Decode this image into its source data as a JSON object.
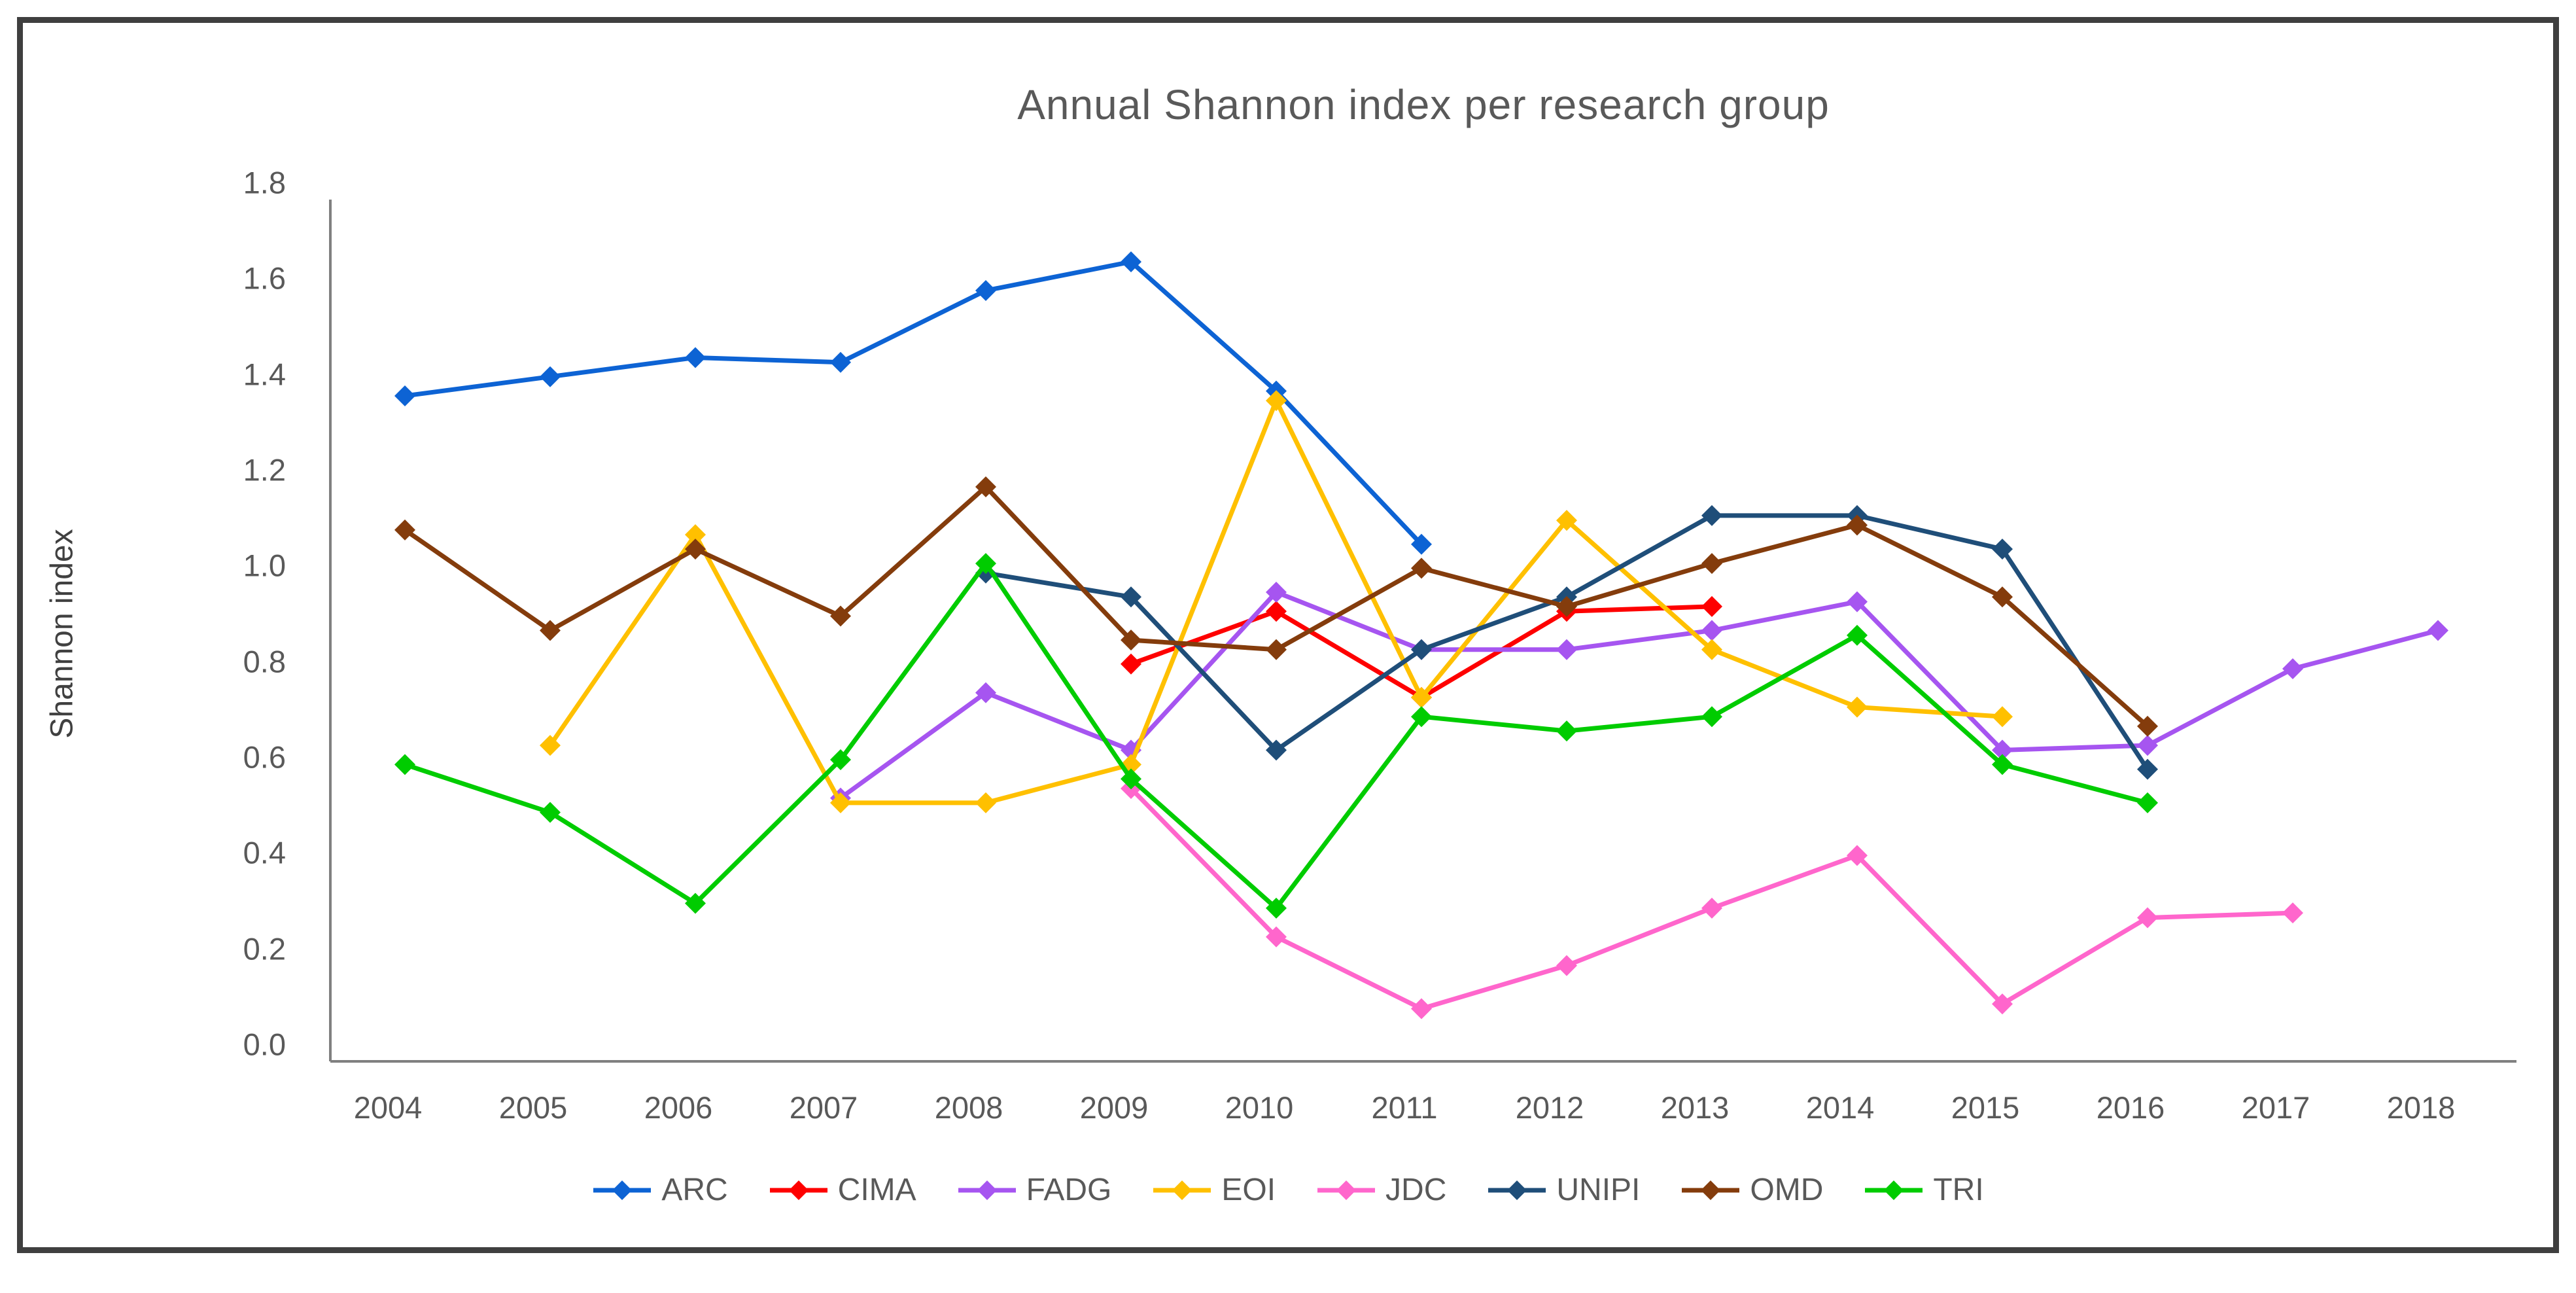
{
  "title": "Annual Shannon index per research group",
  "y_axis_title": "Shannon index",
  "chart_data": {
    "type": "line",
    "title": "Annual Shannon index per research group",
    "xlabel": "",
    "ylabel": "Shannon index",
    "ylim": [
      0.0,
      1.8
    ],
    "ytick_step": 0.2,
    "grid": false,
    "legend_position": "bottom",
    "marker": "diamond",
    "axis_color": "#808080",
    "text_color": "#595959",
    "categories": [
      "2004",
      "2005",
      "2006",
      "2007",
      "2008",
      "2009",
      "2010",
      "2011",
      "2012",
      "2013",
      "2014",
      "2015",
      "2016",
      "2017",
      "2018"
    ],
    "yticks": [
      "0.0",
      "0.2",
      "0.4",
      "0.6",
      "0.8",
      "1.0",
      "1.2",
      "1.4",
      "1.6",
      "1.8"
    ],
    "series": [
      {
        "name": "ARC",
        "color": "#0d63d4",
        "values": [
          1.39,
          1.43,
          1.47,
          1.46,
          1.61,
          1.67,
          1.4,
          1.08,
          null,
          null,
          null,
          null,
          null,
          null,
          null
        ]
      },
      {
        "name": "CIMA",
        "color": "#fe0000",
        "values": [
          null,
          null,
          null,
          null,
          null,
          0.83,
          0.94,
          0.76,
          0.94,
          0.95,
          null,
          null,
          null,
          null,
          null
        ]
      },
      {
        "name": "FADG",
        "color": "#a655f0",
        "values": [
          null,
          null,
          null,
          0.55,
          0.77,
          0.65,
          0.98,
          0.86,
          0.86,
          0.9,
          0.96,
          0.65,
          0.66,
          0.82,
          0.9
        ]
      },
      {
        "name": "EOI",
        "color": "#ffc000",
        "values": [
          null,
          0.66,
          1.1,
          0.54,
          0.54,
          0.62,
          1.38,
          0.76,
          1.13,
          0.86,
          0.74,
          0.72,
          null,
          null,
          null
        ]
      },
      {
        "name": "JDC",
        "color": "#ff66cc",
        "values": [
          null,
          null,
          null,
          null,
          null,
          0.57,
          0.26,
          0.11,
          0.2,
          0.32,
          0.43,
          0.12,
          0.3,
          0.31,
          null
        ]
      },
      {
        "name": "UNIPI",
        "color": "#1f4e79",
        "values": [
          null,
          null,
          null,
          null,
          1.02,
          0.97,
          0.65,
          0.86,
          0.97,
          1.14,
          1.14,
          1.07,
          0.61,
          null,
          null
        ]
      },
      {
        "name": "OMD",
        "color": "#843c0c",
        "values": [
          1.11,
          0.9,
          1.07,
          0.93,
          1.2,
          0.88,
          0.86,
          1.03,
          0.95,
          1.04,
          1.12,
          0.97,
          0.7,
          null,
          null
        ]
      },
      {
        "name": "TRI",
        "color": "#00cc00",
        "values": [
          0.62,
          0.52,
          0.33,
          0.63,
          1.04,
          0.59,
          0.32,
          0.72,
          0.69,
          0.72,
          0.89,
          0.62,
          0.54,
          null,
          null
        ]
      }
    ]
  }
}
